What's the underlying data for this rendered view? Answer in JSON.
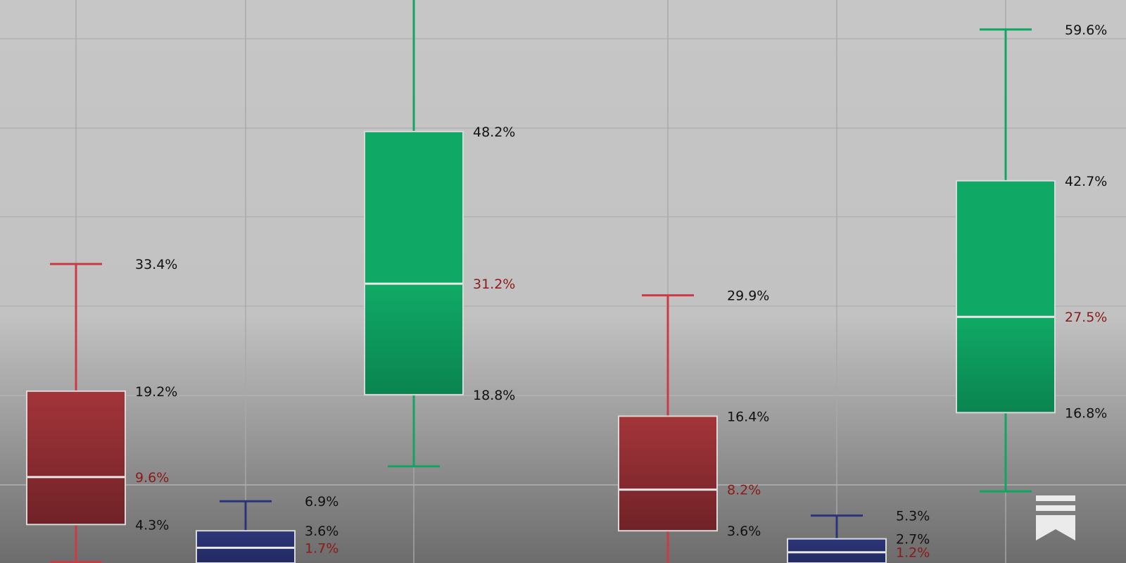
{
  "chart_data": {
    "type": "boxplot",
    "title": "",
    "xlabel": "",
    "ylabel": "",
    "unit": "%",
    "grid": true,
    "legend": "none",
    "ylim": [
      0,
      63
    ],
    "colors": {
      "red": "#a3353a",
      "blue": "#27306e",
      "green": "#10a865",
      "median_label_red": "#8b1a1a",
      "label_dark": "#111111",
      "median_line": "#e8e8e8",
      "background_top": "#c6c6c6",
      "background_bottom": "#6c6c6c"
    },
    "boxes": [
      {
        "color": "red",
        "whisker_high": 33.4,
        "q3": 19.2,
        "median": 9.6,
        "q1": 4.3,
        "whisker_low": 0.1,
        "label_high": "33.4%",
        "label_q3": "19.2%",
        "label_median": "9.6%",
        "label_q1": "4.3%"
      },
      {
        "color": "blue",
        "whisker_high": 6.9,
        "q3": 3.6,
        "median": 1.7,
        "q1": 0,
        "whisker_low": 0,
        "label_high": "6.9%",
        "label_q3": "3.6%",
        "label_median": "1.7%"
      },
      {
        "color": "green",
        "whisker_high": 64,
        "q3": 48.2,
        "median": 31.2,
        "q1": 18.8,
        "whisker_low": 10.8,
        "label_q3": "48.2%",
        "label_median": "31.2%",
        "label_q1": "18.8%"
      },
      {
        "color": "red",
        "whisker_high": 29.9,
        "q3": 16.4,
        "median": 8.2,
        "q1": 3.6,
        "whisker_low": 0,
        "label_high": "29.9%",
        "label_q3": "16.4%",
        "label_median": "8.2%",
        "label_q1": "3.6%"
      },
      {
        "color": "blue",
        "whisker_high": 5.3,
        "q3": 2.7,
        "median": 1.2,
        "q1": 0,
        "whisker_low": 0,
        "label_high": "5.3%",
        "label_q3": "2.7%",
        "label_median": "1.2%"
      },
      {
        "color": "green",
        "whisker_high": 59.6,
        "q3": 42.7,
        "median": 27.5,
        "q1": 16.8,
        "whisker_low": 8.0,
        "label_high": "59.6%",
        "label_q3": "42.7%",
        "label_median": "27.5%",
        "label_q1": "16.8%"
      }
    ]
  },
  "logo": {
    "icon": "bookmark-logo-icon"
  }
}
